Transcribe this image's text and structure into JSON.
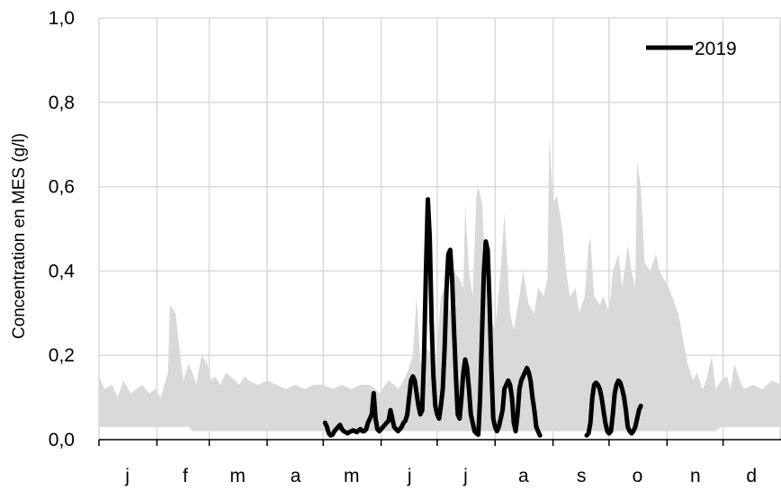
{
  "chart_data": {
    "type": "area",
    "title": "",
    "xlabel": "",
    "ylabel": "Concentration en MES (g/l)",
    "ylim": [
      0,
      1.0
    ],
    "xlim": [
      0,
      365
    ],
    "grid": true,
    "legend_position": "top-right",
    "y_ticks": [
      {
        "value": 0.0,
        "label": "0,0"
      },
      {
        "value": 0.2,
        "label": "0,2"
      },
      {
        "value": 0.4,
        "label": "0,4"
      },
      {
        "value": 0.6,
        "label": "0,6"
      },
      {
        "value": 0.8,
        "label": "0,8"
      },
      {
        "value": 1.0,
        "label": "1,0"
      }
    ],
    "x_ticks": [
      {
        "value": 0,
        "label": "j"
      },
      {
        "value": 31,
        "label": "f"
      },
      {
        "value": 59,
        "label": "m"
      },
      {
        "value": 90,
        "label": "a"
      },
      {
        "value": 120,
        "label": "m"
      },
      {
        "value": 151,
        "label": "j"
      },
      {
        "value": 181,
        "label": "j"
      },
      {
        "value": 212,
        "label": "a"
      },
      {
        "value": 243,
        "label": "s"
      },
      {
        "value": 273,
        "label": "o"
      },
      {
        "value": 304,
        "label": "n"
      },
      {
        "value": 334,
        "label": "d"
      }
    ],
    "band_color": "#d9d9d9",
    "band": {
      "x": [
        0,
        3,
        7,
        10,
        13,
        17,
        20,
        23,
        27,
        30,
        33,
        37,
        38,
        41,
        42,
        45,
        48,
        50,
        52,
        55,
        58,
        60,
        62,
        65,
        68,
        70,
        73,
        75,
        78,
        80,
        85,
        90,
        95,
        100,
        105,
        110,
        115,
        120,
        125,
        130,
        135,
        140,
        145,
        148,
        150,
        155,
        158,
        160,
        163,
        165,
        168,
        170,
        172,
        175,
        178,
        180,
        183,
        185,
        188,
        190,
        193,
        195,
        196,
        198,
        200,
        202,
        203,
        205,
        208,
        210,
        212,
        215,
        217,
        220,
        222,
        225,
        227,
        230,
        233,
        235,
        238,
        240,
        241,
        243,
        245,
        248,
        250,
        252,
        255,
        257,
        260,
        262,
        263,
        265,
        268,
        270,
        273,
        275,
        278,
        280,
        283,
        285,
        287,
        288,
        290,
        292,
        295,
        298,
        300,
        305,
        310,
        315,
        318,
        320,
        323,
        325,
        328,
        330,
        333,
        336,
        338,
        340,
        343,
        345,
        350,
        355,
        360,
        365
      ],
      "low": [
        0.03,
        0.03,
        0.03,
        0.03,
        0.03,
        0.03,
        0.03,
        0.03,
        0.03,
        0.03,
        0.03,
        0.03,
        0.03,
        0.03,
        0.03,
        0.03,
        0.03,
        0.02,
        0.02,
        0.02,
        0.02,
        0.02,
        0.02,
        0.02,
        0.02,
        0.02,
        0.02,
        0.02,
        0.02,
        0.02,
        0.02,
        0.02,
        0.02,
        0.02,
        0.02,
        0.02,
        0.02,
        0.02,
        0.02,
        0.02,
        0.02,
        0.02,
        0.02,
        0.02,
        0.02,
        0.02,
        0.02,
        0.02,
        0.02,
        0.02,
        0.02,
        0.02,
        0.02,
        0.02,
        0.02,
        0.02,
        0.02,
        0.02,
        0.02,
        0.02,
        0.02,
        0.02,
        0.02,
        0.02,
        0.02,
        0.02,
        0.02,
        0.02,
        0.02,
        0.02,
        0.02,
        0.02,
        0.02,
        0.02,
        0.02,
        0.02,
        0.02,
        0.02,
        0.02,
        0.02,
        0.02,
        0.02,
        0.02,
        0.02,
        0.02,
        0.02,
        0.02,
        0.02,
        0.02,
        0.02,
        0.02,
        0.02,
        0.02,
        0.02,
        0.02,
        0.02,
        0.02,
        0.02,
        0.02,
        0.02,
        0.02,
        0.02,
        0.02,
        0.02,
        0.02,
        0.02,
        0.02,
        0.02,
        0.02,
        0.02,
        0.02,
        0.02,
        0.02,
        0.02,
        0.02,
        0.02,
        0.02,
        0.02,
        0.03,
        0.03,
        0.03,
        0.03,
        0.03,
        0.03,
        0.03,
        0.03,
        0.03,
        0.03
      ],
      "high": [
        0.15,
        0.12,
        0.13,
        0.1,
        0.14,
        0.11,
        0.12,
        0.13,
        0.11,
        0.12,
        0.1,
        0.16,
        0.32,
        0.3,
        0.26,
        0.14,
        0.18,
        0.16,
        0.13,
        0.2,
        0.18,
        0.14,
        0.15,
        0.13,
        0.16,
        0.15,
        0.14,
        0.13,
        0.15,
        0.14,
        0.13,
        0.14,
        0.13,
        0.12,
        0.13,
        0.12,
        0.13,
        0.13,
        0.12,
        0.13,
        0.12,
        0.13,
        0.13,
        0.12,
        0.11,
        0.14,
        0.13,
        0.12,
        0.14,
        0.16,
        0.2,
        0.34,
        0.18,
        0.22,
        0.2,
        0.16,
        0.34,
        0.36,
        0.3,
        0.4,
        0.38,
        0.36,
        0.56,
        0.4,
        0.34,
        0.58,
        0.6,
        0.56,
        0.3,
        0.28,
        0.26,
        0.4,
        0.54,
        0.3,
        0.26,
        0.34,
        0.4,
        0.32,
        0.3,
        0.36,
        0.34,
        0.38,
        0.72,
        0.56,
        0.58,
        0.5,
        0.4,
        0.34,
        0.36,
        0.3,
        0.34,
        0.46,
        0.48,
        0.34,
        0.32,
        0.34,
        0.3,
        0.4,
        0.44,
        0.36,
        0.46,
        0.4,
        0.36,
        0.66,
        0.6,
        0.42,
        0.4,
        0.44,
        0.4,
        0.36,
        0.3,
        0.18,
        0.14,
        0.16,
        0.12,
        0.14,
        0.2,
        0.12,
        0.14,
        0.15,
        0.12,
        0.18,
        0.14,
        0.12,
        0.13,
        0.12,
        0.14,
        0.13
      ]
    },
    "series": [
      {
        "name": "2019",
        "color": "#000000",
        "segments": [
          {
            "x": [
              121,
              122,
              123,
              124,
              125,
              126,
              127,
              128,
              129,
              130,
              131,
              132,
              133,
              134,
              135,
              136,
              137,
              138,
              139,
              140,
              141,
              142,
              143,
              144,
              145,
              146,
              147,
              148,
              149,
              150,
              151,
              152,
              153,
              154,
              155,
              156,
              157,
              158,
              159,
              160,
              161,
              162,
              163,
              164,
              165,
              166,
              167,
              168,
              169,
              170,
              171,
              172,
              173,
              174,
              175,
              176,
              177,
              178,
              179,
              180,
              181,
              182,
              183,
              184,
              185,
              186,
              187,
              188,
              189,
              190,
              191,
              192,
              193,
              194,
              195,
              196,
              197,
              198,
              199,
              200,
              201,
              202,
              203,
              204,
              205,
              206,
              207,
              208,
              209,
              210,
              211,
              212,
              213,
              214,
              215,
              216,
              217,
              218,
              219,
              220,
              221,
              222,
              223,
              224,
              225,
              226,
              227,
              228,
              229,
              230,
              231,
              232,
              233,
              234,
              235,
              236
            ],
            "y": [
              0.04,
              0.03,
              0.015,
              0.01,
              0.012,
              0.02,
              0.025,
              0.03,
              0.035,
              0.025,
              0.02,
              0.018,
              0.015,
              0.018,
              0.02,
              0.022,
              0.02,
              0.018,
              0.022,
              0.025,
              0.02,
              0.02,
              0.025,
              0.04,
              0.05,
              0.06,
              0.11,
              0.05,
              0.025,
              0.02,
              0.025,
              0.03,
              0.035,
              0.04,
              0.045,
              0.07,
              0.05,
              0.03,
              0.025,
              0.02,
              0.025,
              0.03,
              0.04,
              0.045,
              0.06,
              0.1,
              0.14,
              0.15,
              0.14,
              0.11,
              0.08,
              0.06,
              0.07,
              0.2,
              0.4,
              0.57,
              0.48,
              0.28,
              0.15,
              0.08,
              0.06,
              0.05,
              0.08,
              0.12,
              0.22,
              0.36,
              0.44,
              0.45,
              0.38,
              0.26,
              0.15,
              0.06,
              0.05,
              0.1,
              0.16,
              0.19,
              0.17,
              0.12,
              0.06,
              0.04,
              0.02,
              0.015,
              0.012,
              0.1,
              0.25,
              0.4,
              0.47,
              0.45,
              0.33,
              0.17,
              0.05,
              0.03,
              0.02,
              0.03,
              0.05,
              0.07,
              0.12,
              0.13,
              0.14,
              0.13,
              0.1,
              0.04,
              0.02,
              0.06,
              0.12,
              0.14,
              0.15,
              0.16,
              0.17,
              0.16,
              0.14,
              0.1,
              0.07,
              0.03,
              0.02,
              0.01
            ]
          },
          {
            "x": [
              261,
              262,
              263,
              264,
              265,
              266,
              267,
              268,
              269,
              270,
              271,
              272,
              273,
              274,
              275,
              276,
              277,
              278,
              279,
              280,
              281,
              282,
              283,
              284,
              285,
              286,
              287,
              288,
              289,
              290
            ],
            "y": [
              0.01,
              0.015,
              0.04,
              0.1,
              0.13,
              0.135,
              0.13,
              0.12,
              0.1,
              0.07,
              0.04,
              0.02,
              0.015,
              0.02,
              0.06,
              0.11,
              0.13,
              0.14,
              0.135,
              0.12,
              0.1,
              0.07,
              0.03,
              0.02,
              0.015,
              0.02,
              0.03,
              0.05,
              0.07,
              0.08
            ]
          }
        ]
      }
    ]
  }
}
